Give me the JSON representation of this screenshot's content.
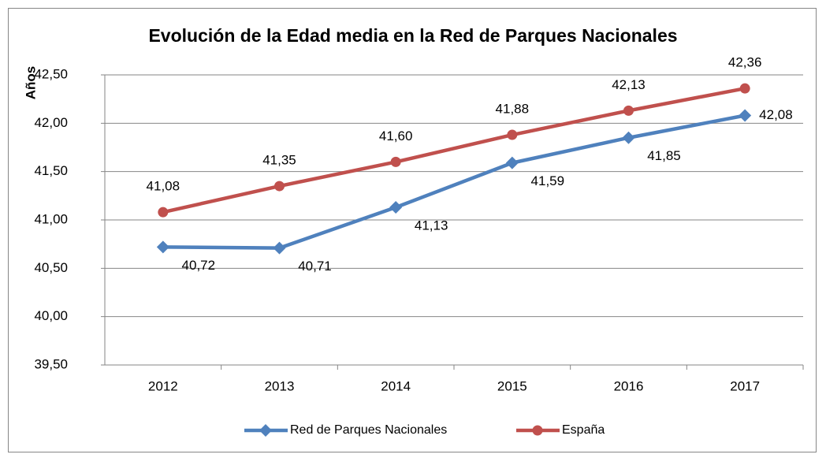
{
  "chart_data": {
    "type": "line",
    "title": "Evolución de la Edad media en la Red de Parques Nacionales",
    "y_label": "Años",
    "categories": [
      "2012",
      "2013",
      "2014",
      "2015",
      "2016",
      "2017"
    ],
    "series": [
      {
        "name": "Red de Parques Nacionales",
        "color": "#4f81bd",
        "marker": "diamond",
        "values": [
          40.72,
          40.71,
          41.13,
          41.59,
          41.85,
          42.08
        ],
        "value_labels": [
          "40,72",
          "40,71",
          "41,13",
          "41,59",
          "41,85",
          "42,08"
        ]
      },
      {
        "name": "España",
        "color": "#c0504d",
        "marker": "circle",
        "values": [
          41.08,
          41.35,
          41.6,
          41.88,
          42.13,
          42.36
        ],
        "value_labels": [
          "41,08",
          "41,35",
          "41,60",
          "41,88",
          "42,13",
          "42,36"
        ]
      }
    ],
    "ylim": [
      39.5,
      42.5
    ],
    "yticks": [
      {
        "value": 39.5,
        "label": "39,50"
      },
      {
        "value": 40,
        "label": "40,00"
      },
      {
        "value": 40.5,
        "label": "40,50"
      },
      {
        "value": 41,
        "label": "41,00"
      },
      {
        "value": 41.5,
        "label": "41,50"
      },
      {
        "value": 42,
        "label": "42,00"
      },
      {
        "value": 42.5,
        "label": "42,50"
      }
    ],
    "grid": true,
    "legend": "bottom"
  }
}
